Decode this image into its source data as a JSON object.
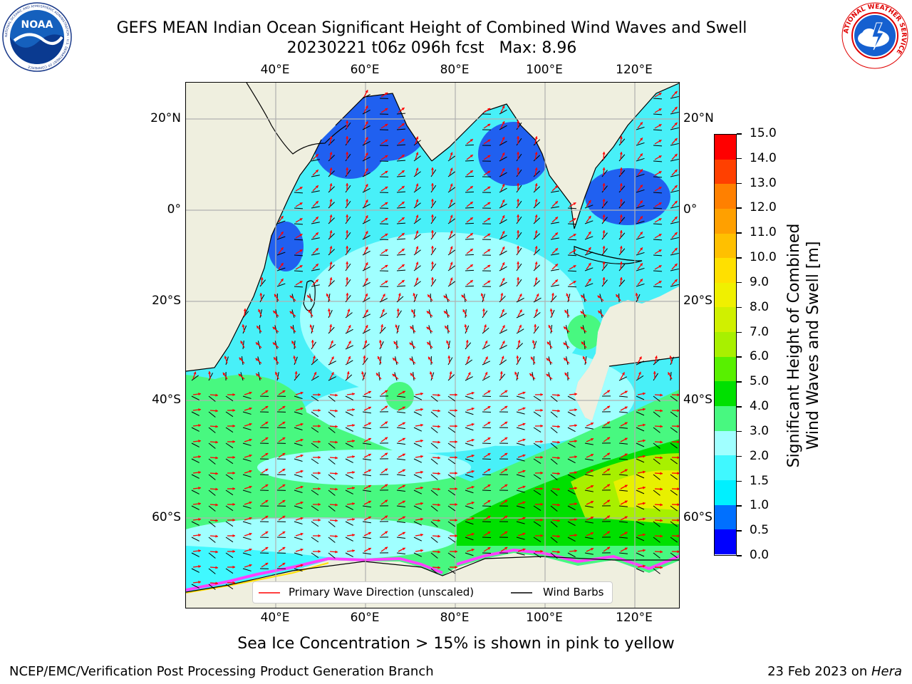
{
  "header": {
    "title_line1": "GEFS MEAN Indian Ocean Significant Height of Combined Wind Waves and Swell",
    "title_line2": "20230221 t06z 096h fcst   Max: 8.96"
  },
  "logos": {
    "noaa_text": "NOAA",
    "noaa_ring_text": "NATIONAL OCEANIC AND ATMOSPHERIC ADMINISTRATION · U.S. DEPARTMENT OF COMMERCE",
    "nws_ring_text": "NATIONAL WEATHER SERVICE"
  },
  "map": {
    "lon_labels": [
      "40°E",
      "60°E",
      "80°E",
      "100°E",
      "120°E"
    ],
    "lat_labels_left": [
      "20°N",
      "0°",
      "20°S",
      "40°S",
      "60°S"
    ],
    "lat_labels_right": [
      "20°N",
      "0°",
      "20°S",
      "40°S",
      "60°S"
    ],
    "lon_range": [
      20,
      130
    ],
    "lat_range": [
      27,
      -70
    ],
    "colors": {
      "land": "#efefdf",
      "grid": "#b0b0b0",
      "wave_arrow": "#ff0000",
      "wind_barb": "#000000"
    }
  },
  "legend": {
    "wave_direction": "Primary Wave Direction (unscaled)",
    "wind_barbs": "Wind Barbs"
  },
  "colorbar": {
    "label_line1": "Significant Height of Combined",
    "label_line2": "Wind Waves and Swell [m]",
    "ticks": [
      "0.0",
      "0.5",
      "1.0",
      "1.5",
      "2.0",
      "3.0",
      "4.0",
      "5.0",
      "6.0",
      "7.0",
      "8.0",
      "9.0",
      "10.0",
      "11.0",
      "12.0",
      "13.0",
      "14.0",
      "15.0"
    ],
    "colors": [
      "#0000ff",
      "#0070ff",
      "#00f0ff",
      "#40f8ff",
      "#a0ffff",
      "#48f880",
      "#00e000",
      "#58f000",
      "#a8f000",
      "#d0f000",
      "#f0f000",
      "#ffe000",
      "#ffc000",
      "#ffa000",
      "#ff8000",
      "#ff4000",
      "#ff0000"
    ]
  },
  "notes": {
    "sea_ice": "Sea Ice Concentration > 15% is shown in pink to yellow"
  },
  "footer": {
    "left": "NCEP/EMC/Verification Post Processing Product Generation Branch",
    "right_date": "23 Feb 2023 on ",
    "right_host": "Hera"
  }
}
